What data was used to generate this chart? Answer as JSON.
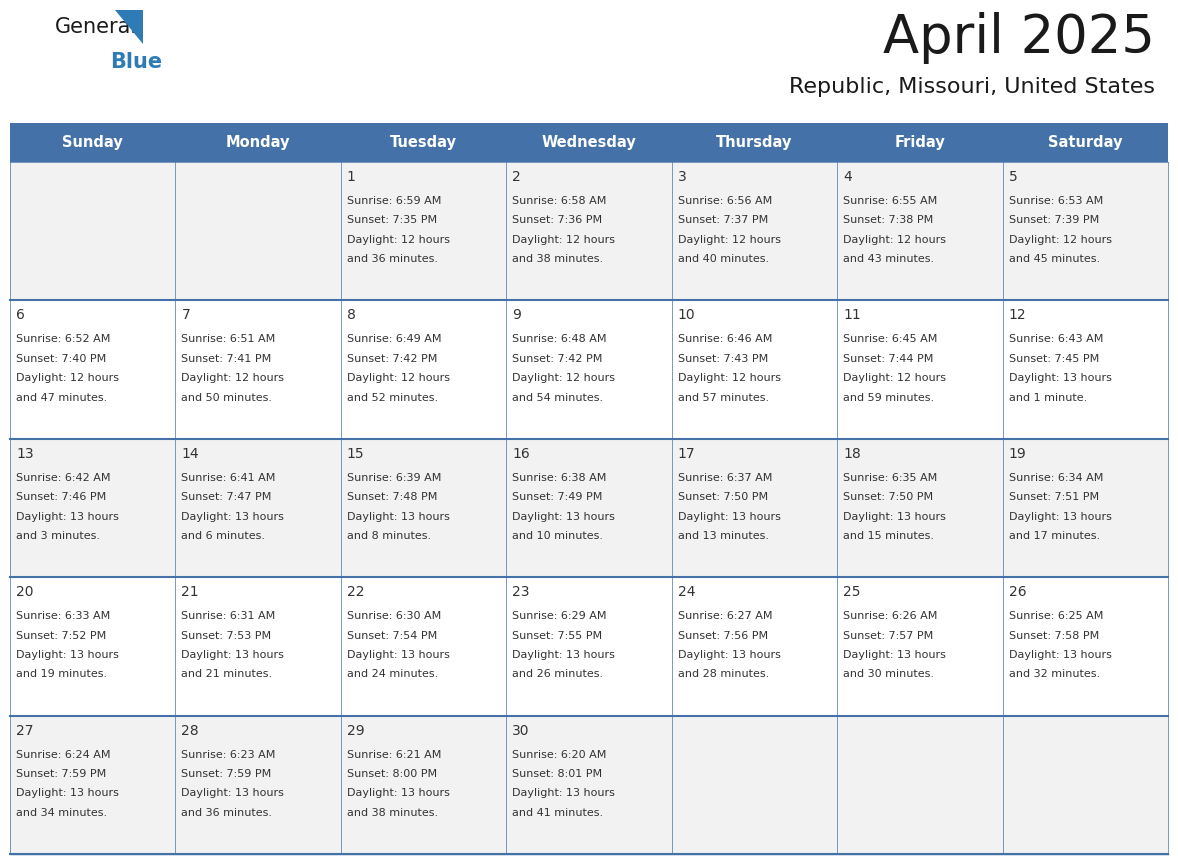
{
  "title": "April 2025",
  "subtitle": "Republic, Missouri, United States",
  "header_bg": "#4472A8",
  "header_text": "#FFFFFF",
  "header_font_size": 10.5,
  "day_names": [
    "Sunday",
    "Monday",
    "Tuesday",
    "Wednesday",
    "Thursday",
    "Friday",
    "Saturday"
  ],
  "title_fontsize": 38,
  "subtitle_fontsize": 16,
  "cell_text_fontsize": 8.0,
  "day_num_fontsize": 10,
  "row_alt_colors": [
    "#F2F2F2",
    "#FFFFFF"
  ],
  "grid_line_color": "#4472A8",
  "text_color": "#333333",
  "logo_general_color": "#1a1a1a",
  "logo_blue_color": "#2e7bb5",
  "logo_triangle_color": "#2e7bb5",
  "days": [
    {
      "date": 1,
      "col": 2,
      "row": 0,
      "sunrise": "6:59 AM",
      "sunset": "7:35 PM",
      "dl_line1": "Daylight: 12 hours",
      "dl_line2": "and 36 minutes."
    },
    {
      "date": 2,
      "col": 3,
      "row": 0,
      "sunrise": "6:58 AM",
      "sunset": "7:36 PM",
      "dl_line1": "Daylight: 12 hours",
      "dl_line2": "and 38 minutes."
    },
    {
      "date": 3,
      "col": 4,
      "row": 0,
      "sunrise": "6:56 AM",
      "sunset": "7:37 PM",
      "dl_line1": "Daylight: 12 hours",
      "dl_line2": "and 40 minutes."
    },
    {
      "date": 4,
      "col": 5,
      "row": 0,
      "sunrise": "6:55 AM",
      "sunset": "7:38 PM",
      "dl_line1": "Daylight: 12 hours",
      "dl_line2": "and 43 minutes."
    },
    {
      "date": 5,
      "col": 6,
      "row": 0,
      "sunrise": "6:53 AM",
      "sunset": "7:39 PM",
      "dl_line1": "Daylight: 12 hours",
      "dl_line2": "and 45 minutes."
    },
    {
      "date": 6,
      "col": 0,
      "row": 1,
      "sunrise": "6:52 AM",
      "sunset": "7:40 PM",
      "dl_line1": "Daylight: 12 hours",
      "dl_line2": "and 47 minutes."
    },
    {
      "date": 7,
      "col": 1,
      "row": 1,
      "sunrise": "6:51 AM",
      "sunset": "7:41 PM",
      "dl_line1": "Daylight: 12 hours",
      "dl_line2": "and 50 minutes."
    },
    {
      "date": 8,
      "col": 2,
      "row": 1,
      "sunrise": "6:49 AM",
      "sunset": "7:42 PM",
      "dl_line1": "Daylight: 12 hours",
      "dl_line2": "and 52 minutes."
    },
    {
      "date": 9,
      "col": 3,
      "row": 1,
      "sunrise": "6:48 AM",
      "sunset": "7:42 PM",
      "dl_line1": "Daylight: 12 hours",
      "dl_line2": "and 54 minutes."
    },
    {
      "date": 10,
      "col": 4,
      "row": 1,
      "sunrise": "6:46 AM",
      "sunset": "7:43 PM",
      "dl_line1": "Daylight: 12 hours",
      "dl_line2": "and 57 minutes."
    },
    {
      "date": 11,
      "col": 5,
      "row": 1,
      "sunrise": "6:45 AM",
      "sunset": "7:44 PM",
      "dl_line1": "Daylight: 12 hours",
      "dl_line2": "and 59 minutes."
    },
    {
      "date": 12,
      "col": 6,
      "row": 1,
      "sunrise": "6:43 AM",
      "sunset": "7:45 PM",
      "dl_line1": "Daylight: 13 hours",
      "dl_line2": "and 1 minute."
    },
    {
      "date": 13,
      "col": 0,
      "row": 2,
      "sunrise": "6:42 AM",
      "sunset": "7:46 PM",
      "dl_line1": "Daylight: 13 hours",
      "dl_line2": "and 3 minutes."
    },
    {
      "date": 14,
      "col": 1,
      "row": 2,
      "sunrise": "6:41 AM",
      "sunset": "7:47 PM",
      "dl_line1": "Daylight: 13 hours",
      "dl_line2": "and 6 minutes."
    },
    {
      "date": 15,
      "col": 2,
      "row": 2,
      "sunrise": "6:39 AM",
      "sunset": "7:48 PM",
      "dl_line1": "Daylight: 13 hours",
      "dl_line2": "and 8 minutes."
    },
    {
      "date": 16,
      "col": 3,
      "row": 2,
      "sunrise": "6:38 AM",
      "sunset": "7:49 PM",
      "dl_line1": "Daylight: 13 hours",
      "dl_line2": "and 10 minutes."
    },
    {
      "date": 17,
      "col": 4,
      "row": 2,
      "sunrise": "6:37 AM",
      "sunset": "7:50 PM",
      "dl_line1": "Daylight: 13 hours",
      "dl_line2": "and 13 minutes."
    },
    {
      "date": 18,
      "col": 5,
      "row": 2,
      "sunrise": "6:35 AM",
      "sunset": "7:50 PM",
      "dl_line1": "Daylight: 13 hours",
      "dl_line2": "and 15 minutes."
    },
    {
      "date": 19,
      "col": 6,
      "row": 2,
      "sunrise": "6:34 AM",
      "sunset": "7:51 PM",
      "dl_line1": "Daylight: 13 hours",
      "dl_line2": "and 17 minutes."
    },
    {
      "date": 20,
      "col": 0,
      "row": 3,
      "sunrise": "6:33 AM",
      "sunset": "7:52 PM",
      "dl_line1": "Daylight: 13 hours",
      "dl_line2": "and 19 minutes."
    },
    {
      "date": 21,
      "col": 1,
      "row": 3,
      "sunrise": "6:31 AM",
      "sunset": "7:53 PM",
      "dl_line1": "Daylight: 13 hours",
      "dl_line2": "and 21 minutes."
    },
    {
      "date": 22,
      "col": 2,
      "row": 3,
      "sunrise": "6:30 AM",
      "sunset": "7:54 PM",
      "dl_line1": "Daylight: 13 hours",
      "dl_line2": "and 24 minutes."
    },
    {
      "date": 23,
      "col": 3,
      "row": 3,
      "sunrise": "6:29 AM",
      "sunset": "7:55 PM",
      "dl_line1": "Daylight: 13 hours",
      "dl_line2": "and 26 minutes."
    },
    {
      "date": 24,
      "col": 4,
      "row": 3,
      "sunrise": "6:27 AM",
      "sunset": "7:56 PM",
      "dl_line1": "Daylight: 13 hours",
      "dl_line2": "and 28 minutes."
    },
    {
      "date": 25,
      "col": 5,
      "row": 3,
      "sunrise": "6:26 AM",
      "sunset": "7:57 PM",
      "dl_line1": "Daylight: 13 hours",
      "dl_line2": "and 30 minutes."
    },
    {
      "date": 26,
      "col": 6,
      "row": 3,
      "sunrise": "6:25 AM",
      "sunset": "7:58 PM",
      "dl_line1": "Daylight: 13 hours",
      "dl_line2": "and 32 minutes."
    },
    {
      "date": 27,
      "col": 0,
      "row": 4,
      "sunrise": "6:24 AM",
      "sunset": "7:59 PM",
      "dl_line1": "Daylight: 13 hours",
      "dl_line2": "and 34 minutes."
    },
    {
      "date": 28,
      "col": 1,
      "row": 4,
      "sunrise": "6:23 AM",
      "sunset": "7:59 PM",
      "dl_line1": "Daylight: 13 hours",
      "dl_line2": "and 36 minutes."
    },
    {
      "date": 29,
      "col": 2,
      "row": 4,
      "sunrise": "6:21 AM",
      "sunset": "8:00 PM",
      "dl_line1": "Daylight: 13 hours",
      "dl_line2": "and 38 minutes."
    },
    {
      "date": 30,
      "col": 3,
      "row": 4,
      "sunrise": "6:20 AM",
      "sunset": "8:01 PM",
      "dl_line1": "Daylight: 13 hours",
      "dl_line2": "and 41 minutes."
    }
  ]
}
